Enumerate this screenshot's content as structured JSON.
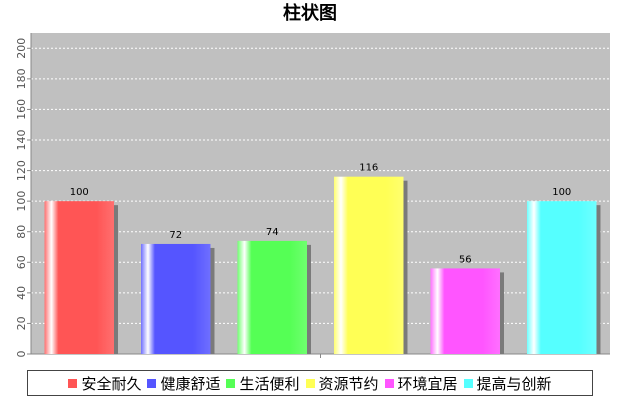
{
  "chart_data": {
    "type": "bar",
    "title": "柱状图",
    "categories": [
      "安全耐久",
      "健康舒适",
      "生活便利",
      "资源节约",
      "环境宜居",
      "提高与创新"
    ],
    "values": [
      100,
      72,
      74,
      116,
      56,
      100
    ],
    "colors": [
      "#ff5555",
      "#5555ff",
      "#55ff55",
      "#ffff55",
      "#ff55ff",
      "#55ffff"
    ],
    "ylim": [
      0,
      210
    ],
    "yticks": [
      0,
      20,
      40,
      60,
      80,
      100,
      120,
      140,
      160,
      180,
      200
    ],
    "grid": true,
    "legend": "bottom",
    "plot_background": "#c0c0c0"
  }
}
